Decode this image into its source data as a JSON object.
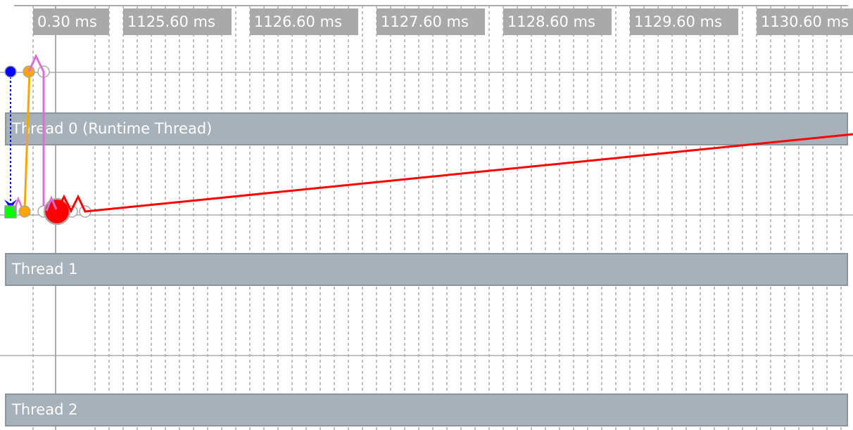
{
  "time_labels": [
    "0.30 ms",
    "1125.60 ms",
    "1126.60 ms",
    "1127.60 ms",
    "1128.60 ms",
    "1129.60 ms",
    "1130.60 ms"
  ],
  "threads": [
    {
      "label": "Thread 0 (Runtime Thread)"
    },
    {
      "label": "Thread 1"
    },
    {
      "label": "Thread 2"
    }
  ],
  "colors": {
    "thread_bar": "#a7b1ba",
    "label_bg": "#a9a9a9",
    "flow_blue": "#0000ff",
    "flow_orange": "#ffa500",
    "flow_violet": "#da70d6",
    "flow_red": "#ff0000",
    "event_green": "#00ff00"
  }
}
